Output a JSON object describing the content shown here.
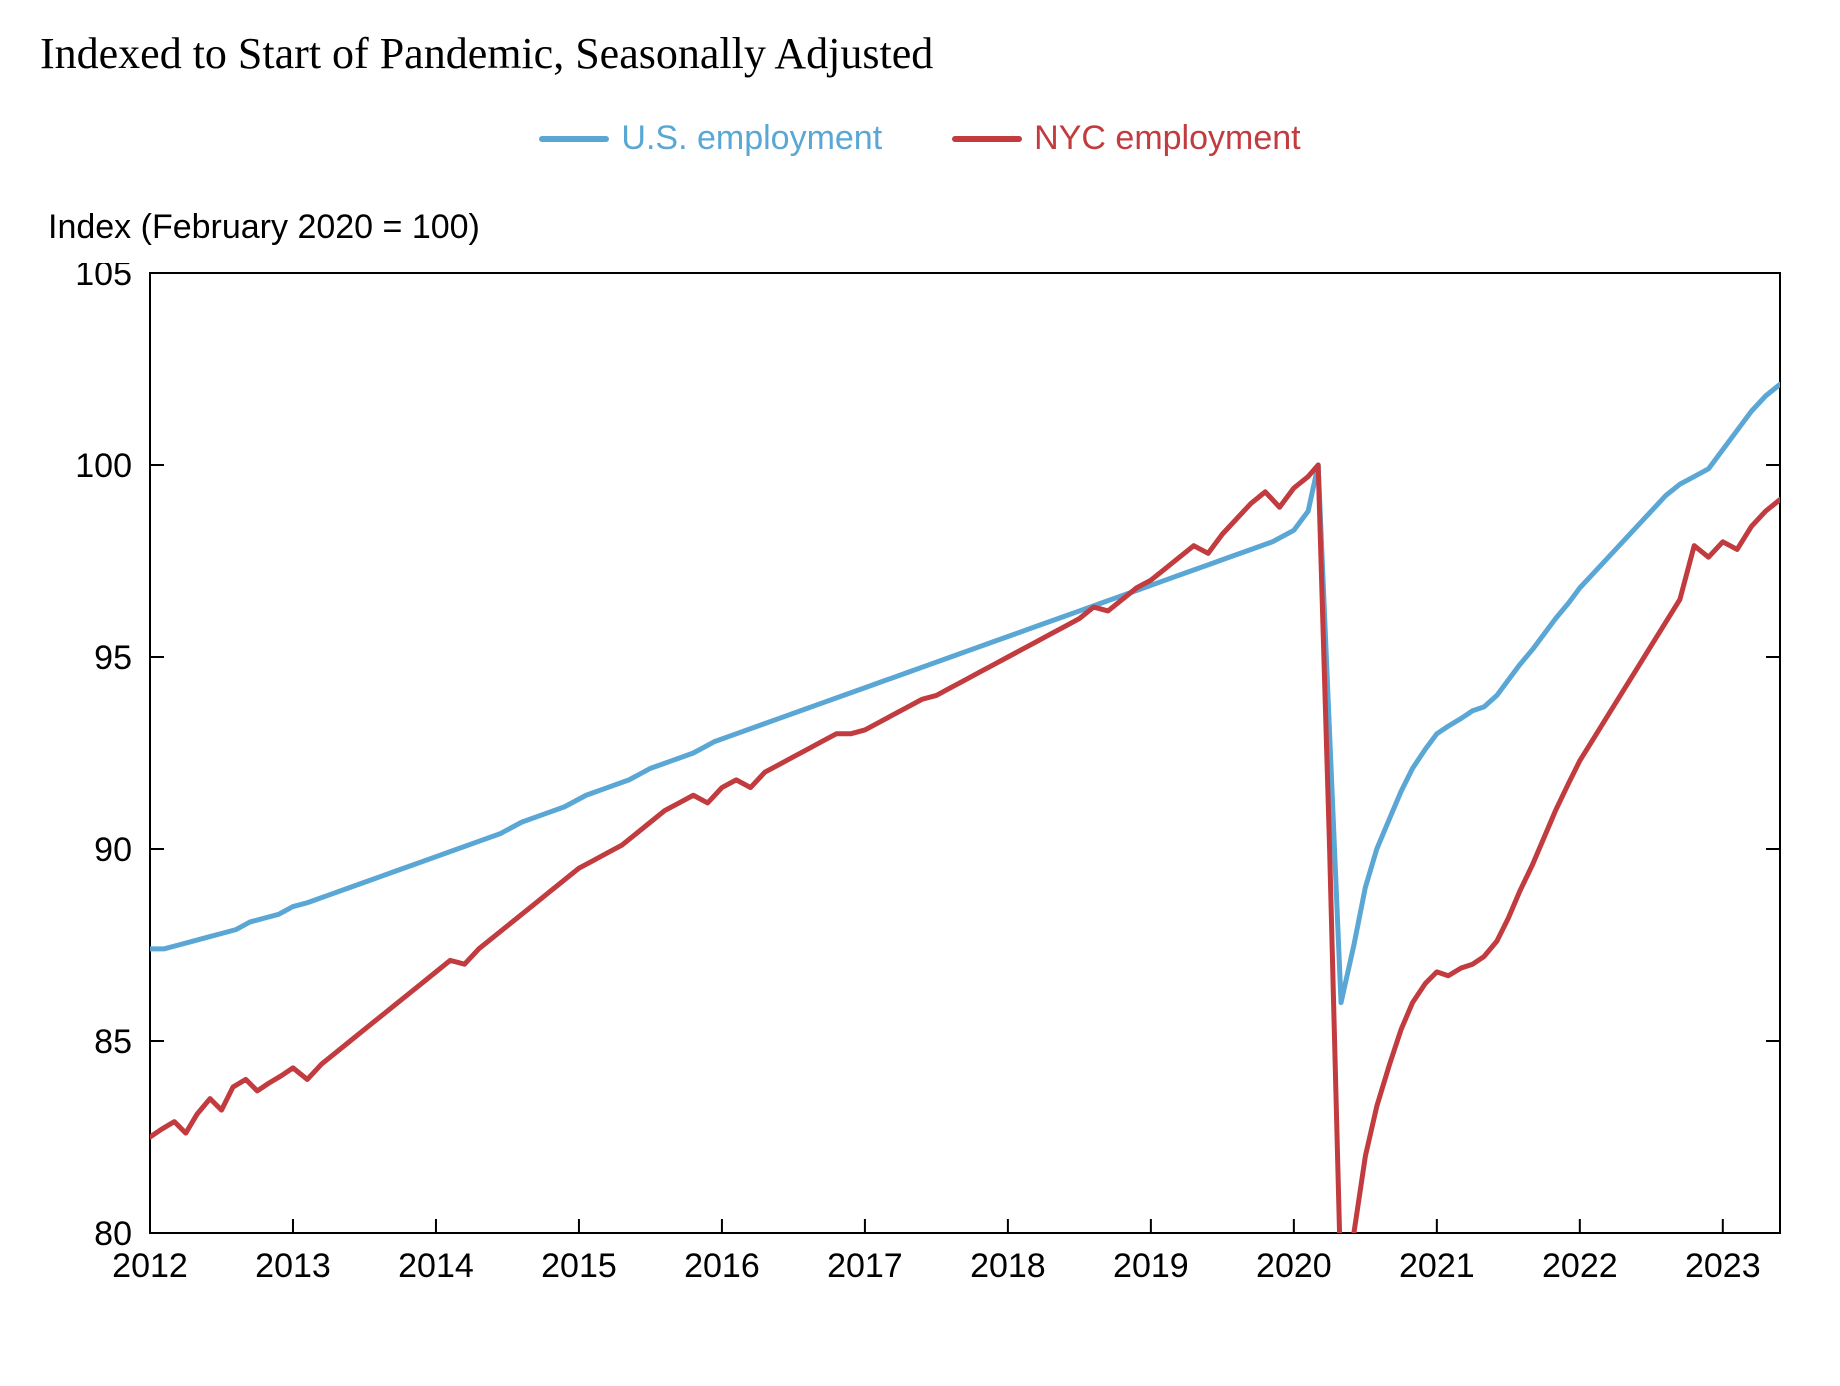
{
  "title": "Indexed to Start of Pandemic, Seasonally Adjusted",
  "ylabel": "Index (February 2020 = 100)",
  "legend": {
    "us": {
      "label": "U.S. employment",
      "color": "#5aa7d6"
    },
    "nyc": {
      "label": "NYC employment",
      "color": "#c13b3f"
    }
  },
  "chart": {
    "type": "line",
    "background_color": "#ffffff",
    "axis_color": "#000000",
    "line_width": 5,
    "title_fontsize": 44,
    "label_fontsize": 34,
    "tick_fontsize": 34,
    "font_family_title": "Georgia",
    "font_family_labels": "Arial",
    "x": {
      "min": 2012,
      "max": 2023.4,
      "ticks": [
        2012,
        2013,
        2014,
        2015,
        2016,
        2017,
        2018,
        2019,
        2020,
        2021,
        2022,
        2023
      ],
      "tick_labels": [
        "2012",
        "2013",
        "2014",
        "2015",
        "2016",
        "2017",
        "2018",
        "2019",
        "2020",
        "2021",
        "2022",
        "2023"
      ]
    },
    "y": {
      "min": 80,
      "max": 105,
      "ticks": [
        80,
        85,
        90,
        95,
        100,
        105
      ],
      "tick_labels": [
        "80",
        "85",
        "90",
        "95",
        "100",
        "105"
      ]
    },
    "series": {
      "us": {
        "color": "#5aa7d6",
        "points": [
          [
            2012.0,
            87.4
          ],
          [
            2012.1,
            87.4
          ],
          [
            2012.2,
            87.5
          ],
          [
            2012.3,
            87.6
          ],
          [
            2012.4,
            87.7
          ],
          [
            2012.5,
            87.8
          ],
          [
            2012.6,
            87.9
          ],
          [
            2012.7,
            88.1
          ],
          [
            2012.8,
            88.2
          ],
          [
            2012.9,
            88.3
          ],
          [
            2013.0,
            88.5
          ],
          [
            2013.1,
            88.6
          ],
          [
            2013.25,
            88.8
          ],
          [
            2013.4,
            89.0
          ],
          [
            2013.55,
            89.2
          ],
          [
            2013.7,
            89.4
          ],
          [
            2013.85,
            89.6
          ],
          [
            2014.0,
            89.8
          ],
          [
            2014.15,
            90.0
          ],
          [
            2014.3,
            90.2
          ],
          [
            2014.45,
            90.4
          ],
          [
            2014.6,
            90.7
          ],
          [
            2014.75,
            90.9
          ],
          [
            2014.9,
            91.1
          ],
          [
            2015.05,
            91.4
          ],
          [
            2015.2,
            91.6
          ],
          [
            2015.35,
            91.8
          ],
          [
            2015.5,
            92.1
          ],
          [
            2015.65,
            92.3
          ],
          [
            2015.8,
            92.5
          ],
          [
            2015.95,
            92.8
          ],
          [
            2016.1,
            93.0
          ],
          [
            2016.25,
            93.2
          ],
          [
            2016.4,
            93.4
          ],
          [
            2016.55,
            93.6
          ],
          [
            2016.7,
            93.8
          ],
          [
            2016.85,
            94.0
          ],
          [
            2017.0,
            94.2
          ],
          [
            2017.15,
            94.4
          ],
          [
            2017.3,
            94.6
          ],
          [
            2017.45,
            94.8
          ],
          [
            2017.6,
            95.0
          ],
          [
            2017.75,
            95.2
          ],
          [
            2017.9,
            95.4
          ],
          [
            2018.05,
            95.6
          ],
          [
            2018.2,
            95.8
          ],
          [
            2018.35,
            96.0
          ],
          [
            2018.5,
            96.2
          ],
          [
            2018.65,
            96.4
          ],
          [
            2018.8,
            96.6
          ],
          [
            2018.95,
            96.8
          ],
          [
            2019.1,
            97.0
          ],
          [
            2019.25,
            97.2
          ],
          [
            2019.4,
            97.4
          ],
          [
            2019.55,
            97.6
          ],
          [
            2019.7,
            97.8
          ],
          [
            2019.85,
            98.0
          ],
          [
            2020.0,
            98.3
          ],
          [
            2020.1,
            98.8
          ],
          [
            2020.17,
            100.0
          ],
          [
            2020.25,
            93.0
          ],
          [
            2020.33,
            86.0
          ],
          [
            2020.42,
            87.5
          ],
          [
            2020.5,
            89.0
          ],
          [
            2020.58,
            90.0
          ],
          [
            2020.67,
            90.8
          ],
          [
            2020.75,
            91.5
          ],
          [
            2020.83,
            92.1
          ],
          [
            2020.92,
            92.6
          ],
          [
            2021.0,
            93.0
          ],
          [
            2021.08,
            93.2
          ],
          [
            2021.17,
            93.4
          ],
          [
            2021.25,
            93.6
          ],
          [
            2021.33,
            93.7
          ],
          [
            2021.42,
            94.0
          ],
          [
            2021.5,
            94.4
          ],
          [
            2021.58,
            94.8
          ],
          [
            2021.67,
            95.2
          ],
          [
            2021.75,
            95.6
          ],
          [
            2021.83,
            96.0
          ],
          [
            2021.92,
            96.4
          ],
          [
            2022.0,
            96.8
          ],
          [
            2022.1,
            97.2
          ],
          [
            2022.2,
            97.6
          ],
          [
            2022.3,
            98.0
          ],
          [
            2022.4,
            98.4
          ],
          [
            2022.5,
            98.8
          ],
          [
            2022.6,
            99.2
          ],
          [
            2022.7,
            99.5
          ],
          [
            2022.8,
            99.7
          ],
          [
            2022.9,
            99.9
          ],
          [
            2023.0,
            100.4
          ],
          [
            2023.1,
            100.9
          ],
          [
            2023.2,
            101.4
          ],
          [
            2023.3,
            101.8
          ],
          [
            2023.4,
            102.1
          ]
        ]
      },
      "nyc": {
        "color": "#c13b3f",
        "points": [
          [
            2012.0,
            82.5
          ],
          [
            2012.08,
            82.7
          ],
          [
            2012.17,
            82.9
          ],
          [
            2012.25,
            82.6
          ],
          [
            2012.33,
            83.1
          ],
          [
            2012.42,
            83.5
          ],
          [
            2012.5,
            83.2
          ],
          [
            2012.58,
            83.8
          ],
          [
            2012.67,
            84.0
          ],
          [
            2012.75,
            83.7
          ],
          [
            2012.83,
            83.9
          ],
          [
            2012.92,
            84.1
          ],
          [
            2013.0,
            84.3
          ],
          [
            2013.1,
            84.0
          ],
          [
            2013.2,
            84.4
          ],
          [
            2013.3,
            84.7
          ],
          [
            2013.4,
            85.0
          ],
          [
            2013.5,
            85.3
          ],
          [
            2013.6,
            85.6
          ],
          [
            2013.7,
            85.9
          ],
          [
            2013.8,
            86.2
          ],
          [
            2013.9,
            86.5
          ],
          [
            2014.0,
            86.8
          ],
          [
            2014.1,
            87.1
          ],
          [
            2014.2,
            87.0
          ],
          [
            2014.3,
            87.4
          ],
          [
            2014.4,
            87.7
          ],
          [
            2014.5,
            88.0
          ],
          [
            2014.6,
            88.3
          ],
          [
            2014.7,
            88.6
          ],
          [
            2014.8,
            88.9
          ],
          [
            2014.9,
            89.2
          ],
          [
            2015.0,
            89.5
          ],
          [
            2015.1,
            89.7
          ],
          [
            2015.2,
            89.9
          ],
          [
            2015.3,
            90.1
          ],
          [
            2015.4,
            90.4
          ],
          [
            2015.5,
            90.7
          ],
          [
            2015.6,
            91.0
          ],
          [
            2015.7,
            91.2
          ],
          [
            2015.8,
            91.4
          ],
          [
            2015.9,
            91.2
          ],
          [
            2016.0,
            91.6
          ],
          [
            2016.1,
            91.8
          ],
          [
            2016.2,
            91.6
          ],
          [
            2016.3,
            92.0
          ],
          [
            2016.4,
            92.2
          ],
          [
            2016.5,
            92.4
          ],
          [
            2016.6,
            92.6
          ],
          [
            2016.7,
            92.8
          ],
          [
            2016.8,
            93.0
          ],
          [
            2016.9,
            93.0
          ],
          [
            2017.0,
            93.1
          ],
          [
            2017.1,
            93.3
          ],
          [
            2017.2,
            93.5
          ],
          [
            2017.3,
            93.7
          ],
          [
            2017.4,
            93.9
          ],
          [
            2017.5,
            94.0
          ],
          [
            2017.6,
            94.2
          ],
          [
            2017.7,
            94.4
          ],
          [
            2017.8,
            94.6
          ],
          [
            2017.9,
            94.8
          ],
          [
            2018.0,
            95.0
          ],
          [
            2018.1,
            95.2
          ],
          [
            2018.2,
            95.4
          ],
          [
            2018.3,
            95.6
          ],
          [
            2018.4,
            95.8
          ],
          [
            2018.5,
            96.0
          ],
          [
            2018.6,
            96.3
          ],
          [
            2018.7,
            96.2
          ],
          [
            2018.8,
            96.5
          ],
          [
            2018.9,
            96.8
          ],
          [
            2019.0,
            97.0
          ],
          [
            2019.1,
            97.3
          ],
          [
            2019.2,
            97.6
          ],
          [
            2019.3,
            97.9
          ],
          [
            2019.4,
            97.7
          ],
          [
            2019.5,
            98.2
          ],
          [
            2019.6,
            98.6
          ],
          [
            2019.7,
            99.0
          ],
          [
            2019.8,
            99.3
          ],
          [
            2019.9,
            98.9
          ],
          [
            2020.0,
            99.4
          ],
          [
            2020.1,
            99.7
          ],
          [
            2020.17,
            100.0
          ],
          [
            2020.25,
            90.0
          ],
          [
            2020.33,
            78.5
          ],
          [
            2020.42,
            80.0
          ],
          [
            2020.5,
            82.0
          ],
          [
            2020.58,
            83.3
          ],
          [
            2020.67,
            84.4
          ],
          [
            2020.75,
            85.3
          ],
          [
            2020.83,
            86.0
          ],
          [
            2020.92,
            86.5
          ],
          [
            2021.0,
            86.8
          ],
          [
            2021.08,
            86.7
          ],
          [
            2021.17,
            86.9
          ],
          [
            2021.25,
            87.0
          ],
          [
            2021.33,
            87.2
          ],
          [
            2021.42,
            87.6
          ],
          [
            2021.5,
            88.2
          ],
          [
            2021.58,
            88.9
          ],
          [
            2021.67,
            89.6
          ],
          [
            2021.75,
            90.3
          ],
          [
            2021.83,
            91.0
          ],
          [
            2021.92,
            91.7
          ],
          [
            2022.0,
            92.3
          ],
          [
            2022.1,
            92.9
          ],
          [
            2022.2,
            93.5
          ],
          [
            2022.3,
            94.1
          ],
          [
            2022.4,
            94.7
          ],
          [
            2022.5,
            95.3
          ],
          [
            2022.6,
            95.9
          ],
          [
            2022.7,
            96.5
          ],
          [
            2022.8,
            97.9
          ],
          [
            2022.9,
            97.6
          ],
          [
            2023.0,
            98.0
          ],
          [
            2023.1,
            97.8
          ],
          [
            2023.2,
            98.4
          ],
          [
            2023.3,
            98.8
          ],
          [
            2023.4,
            99.1
          ]
        ]
      }
    }
  }
}
